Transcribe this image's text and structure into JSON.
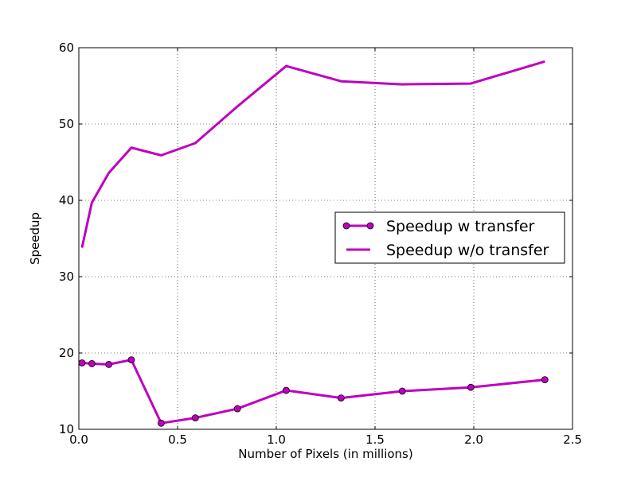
{
  "chart_data": {
    "type": "line",
    "title": "",
    "xlabel": "Number of Pixels (in millions)",
    "ylabel": "Speedup",
    "xlim": [
      0.0,
      2.5
    ],
    "ylim": [
      10,
      60
    ],
    "xticks": [
      0.0,
      0.5,
      1.0,
      1.5,
      2.0,
      2.5
    ],
    "xtick_labels": [
      "0.0",
      "0.5",
      "1.0",
      "1.5",
      "2.0",
      "2.5"
    ],
    "yticks": [
      10,
      20,
      30,
      40,
      50,
      60
    ],
    "ytick_labels": [
      "10",
      "20",
      "30",
      "40",
      "50",
      "60"
    ],
    "grid": true,
    "legend_position": "center-right",
    "series": [
      {
        "name": "Speedup w transfer",
        "color": "#bf00bf",
        "marker": "circle",
        "x": [
          0.016,
          0.066,
          0.152,
          0.266,
          0.417,
          0.59,
          0.803,
          1.05,
          1.328,
          1.638,
          1.985,
          2.36
        ],
        "y": [
          18.7,
          18.6,
          18.5,
          19.1,
          10.8,
          11.5,
          12.7,
          15.1,
          14.1,
          15.0,
          15.5,
          16.5
        ]
      },
      {
        "name": "Speedup w/o transfer",
        "color": "#bf00bf",
        "marker": "none",
        "x": [
          0.016,
          0.066,
          0.152,
          0.266,
          0.417,
          0.59,
          0.803,
          1.05,
          1.328,
          1.638,
          1.985,
          2.36
        ],
        "y": [
          33.8,
          39.7,
          43.6,
          46.9,
          45.9,
          47.5,
          52.3,
          57.6,
          55.6,
          55.2,
          55.3,
          58.2
        ]
      }
    ]
  }
}
